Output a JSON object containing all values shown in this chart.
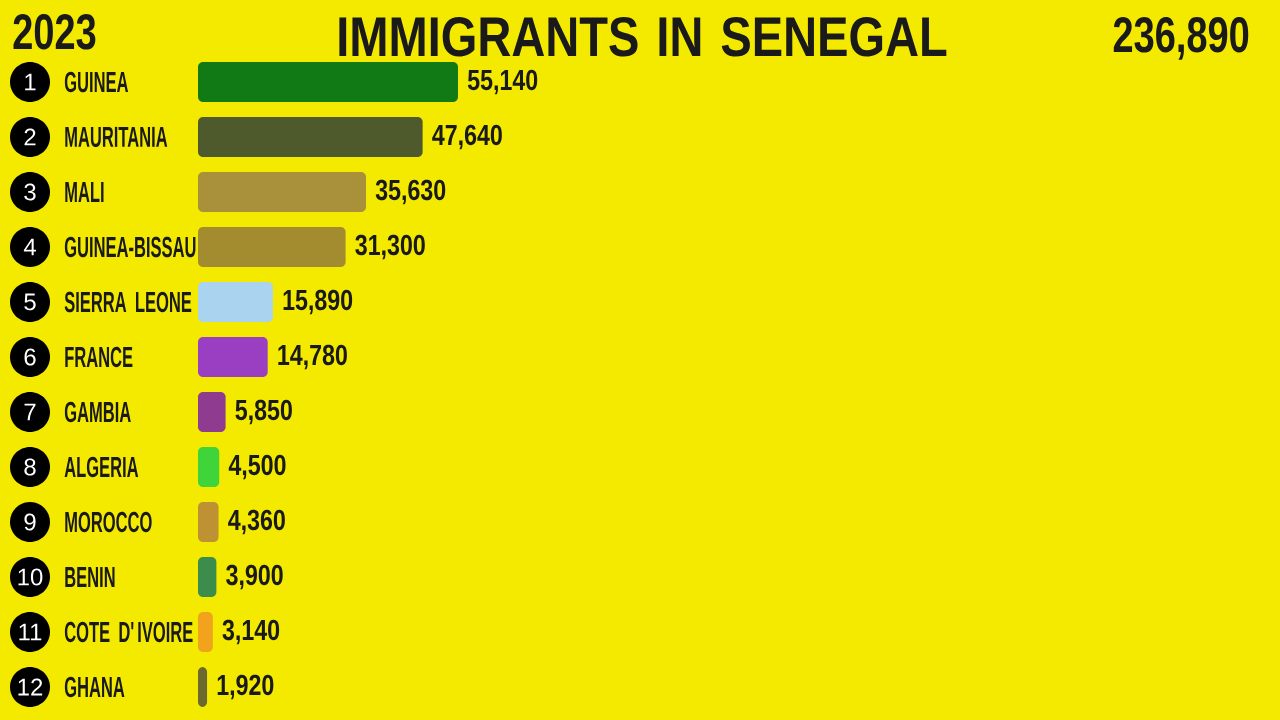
{
  "chart_data": {
    "type": "bar",
    "orientation": "horizontal",
    "title": "IMMIGRANTS IN SENEGAL",
    "subtitle": "2023",
    "categories": [
      "GUINEA",
      "MAURITANIA",
      "MALI",
      "GUINEA-BISSAU",
      "SIERRA LEONE",
      "FRANCE",
      "GAMBIA",
      "ALGERIA",
      "MOROCCO",
      "BENIN",
      "COTE D'IVOIRE",
      "GHANA"
    ],
    "values": [
      55140,
      47640,
      35630,
      31300,
      15890,
      14780,
      5850,
      4500,
      4360,
      3900,
      3140,
      1920
    ],
    "value_labels": [
      "55,140",
      "47,640",
      "35,630",
      "31,300",
      "15,890",
      "14,780",
      "5,850",
      "4,500",
      "4,360",
      "3,900",
      "3,140",
      "1,920"
    ],
    "colors": [
      "#117a14",
      "#4e5a2c",
      "#a8913a",
      "#a38c30",
      "#a9d3ef",
      "#9b3fc2",
      "#8f3b8f",
      "#3fd43a",
      "#be9233",
      "#3c8c4c",
      "#f2a31e",
      "#6b6a2c"
    ],
    "tick_labels": "y",
    "annotations": [
      "236,890",
      "1",
      "2",
      "3",
      "4",
      "5",
      "6",
      "7",
      "8",
      "9",
      "10",
      "11",
      "12"
    ]
  }
}
